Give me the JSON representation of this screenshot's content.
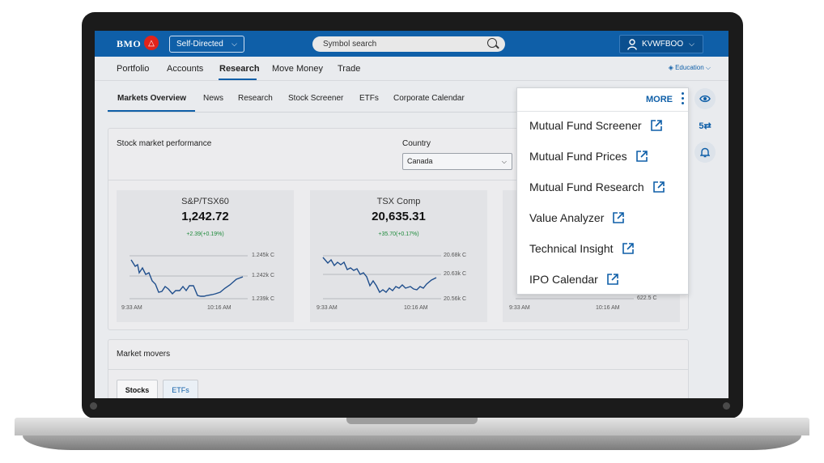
{
  "topbar": {
    "logo": "BMO",
    "mode_label": "Self-Directed",
    "search_placeholder": "Symbol search",
    "user_label": "KVWFBOO"
  },
  "main_nav": {
    "items": [
      "Portfolio",
      "Accounts",
      "Research",
      "Move Money",
      "Trade"
    ],
    "active": "Research",
    "education_label": "Education"
  },
  "sub_nav": {
    "items": [
      "Markets Overview",
      "News",
      "Research",
      "Stock Screener",
      "ETFs",
      "Corporate Calendar"
    ],
    "active": "Markets Overview"
  },
  "performance": {
    "title": "Stock market performance",
    "country_label": "Country",
    "country_value": "Canada",
    "cards": [
      {
        "name": "S&P/TSX60",
        "value": "1,242.72",
        "change": "+2.39(+0.19%)",
        "y_ticks": [
          "1.245k C",
          "1.242k C",
          "1.239k C"
        ],
        "x_ticks": [
          "9:33 AM",
          "10:16 AM"
        ]
      },
      {
        "name": "TSX Comp",
        "value": "20,635.31",
        "change": "+35.70(+0.17%)",
        "y_ticks": [
          "20.68k C",
          "20.63k C",
          "20.56k C"
        ],
        "x_ticks": [
          "9:33 AM",
          "10:16 AM"
        ]
      },
      {
        "y_ticks": [
          "622.5 C"
        ],
        "x_ticks": [
          "9:33 AM",
          "10:16 AM"
        ]
      }
    ]
  },
  "movers": {
    "title": "Market movers",
    "tabs": [
      "Stocks",
      "ETFs"
    ],
    "active_tab": "Stocks"
  },
  "more_menu": {
    "header": "MORE",
    "items": [
      "Mutual Fund Screener",
      "Mutual Fund Prices",
      "Mutual Fund Research",
      "Value Analyzer",
      "Technical Insight",
      "IPO Calendar"
    ]
  },
  "icons": {
    "logo": "bmo-roundel-icon",
    "search": "search-icon",
    "user": "person-icon",
    "education": "graduation-cap-icon",
    "rail": [
      "eye-icon",
      "dollar-exchange-icon",
      "bell-icon"
    ],
    "more": "kebab-icon",
    "external": "external-link-icon"
  },
  "colors": {
    "brand_blue": "#0f5fa8",
    "brand_red": "#e2231a",
    "positive": "#1d8a3a",
    "line": "#1f4e8c"
  }
}
